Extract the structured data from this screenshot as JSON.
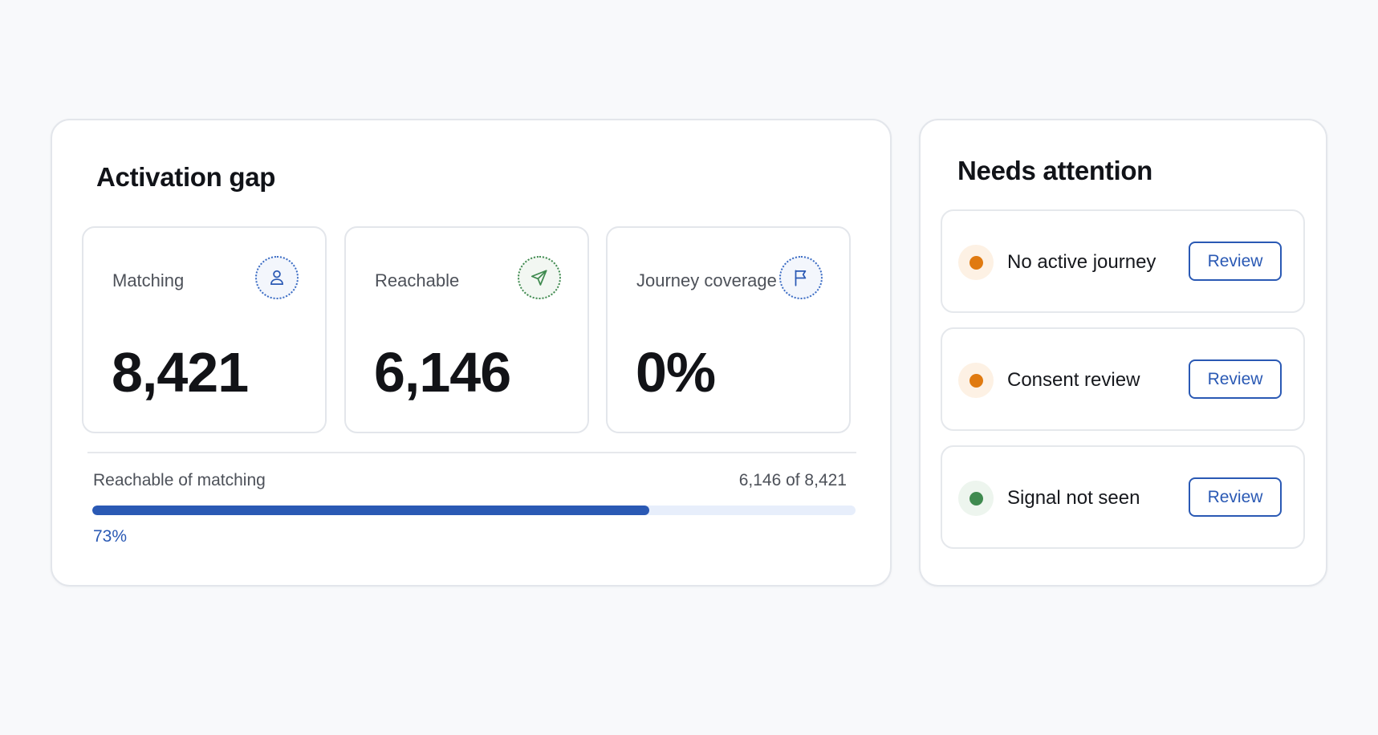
{
  "activation": {
    "title": "Activation gap",
    "metrics": [
      {
        "label": "Matching",
        "value": "8,421",
        "icon": "person-icon"
      },
      {
        "label": "Reachable",
        "value": "6,146",
        "icon": "send-icon"
      },
      {
        "label": "Journey coverage",
        "value": "0%",
        "icon": "flag-icon"
      }
    ],
    "progress": {
      "label": "Reachable of matching",
      "count": "6,146 of 8,421",
      "percent_label": "73%",
      "fraction": 0.73
    }
  },
  "attention": {
    "title": "Needs attention",
    "items": [
      {
        "label": "No active journey",
        "status_color": "#e07a10",
        "halo_color": "#fdf1e4",
        "button_label": "Review"
      },
      {
        "label": "Consent review",
        "status_color": "#e07a10",
        "halo_color": "#fdf1e4",
        "button_label": "Review"
      },
      {
        "label": "Signal not seen",
        "status_color": "#3f8a4f",
        "halo_color": "#edf5ee",
        "button_label": "Review"
      }
    ]
  },
  "colors": {
    "accent": "#2a59b4",
    "warning": "#e07a10",
    "success": "#3f8a4f"
  }
}
